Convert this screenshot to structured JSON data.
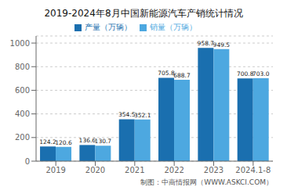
{
  "chart_data": {
    "type": "bar",
    "title": "2019-2024年8月中国新能源汽车产销统计情况",
    "categories": [
      "2019",
      "2020",
      "2021",
      "2022",
      "2023",
      "2024.1-8"
    ],
    "series": [
      {
        "name": "产量（万辆）",
        "color": "#1a6faf",
        "values": [
          124.2,
          136.6,
          354.5,
          705.8,
          958.7,
          700.8
        ],
        "value_labels": [
          "124.2",
          "136.6",
          "354.5",
          "705.8",
          "958.7",
          "700.8"
        ]
      },
      {
        "name": "销量（万辆）",
        "color": "#4da8e0",
        "values": [
          120.6,
          130.7,
          352.1,
          688.7,
          949.5,
          703.0
        ],
        "value_labels": [
          "120.6",
          "130.7",
          "352.1",
          "688.7",
          "949.5",
          "703.0"
        ]
      }
    ],
    "ylim": [
      0,
      1060
    ],
    "yticks": [
      0,
      200,
      400,
      600,
      800,
      1000
    ],
    "grid": true,
    "legend": "upper center",
    "data_labels": true,
    "annotations": [
      "制图：中商情报网（WWW.ASKCI.COM）"
    ]
  }
}
